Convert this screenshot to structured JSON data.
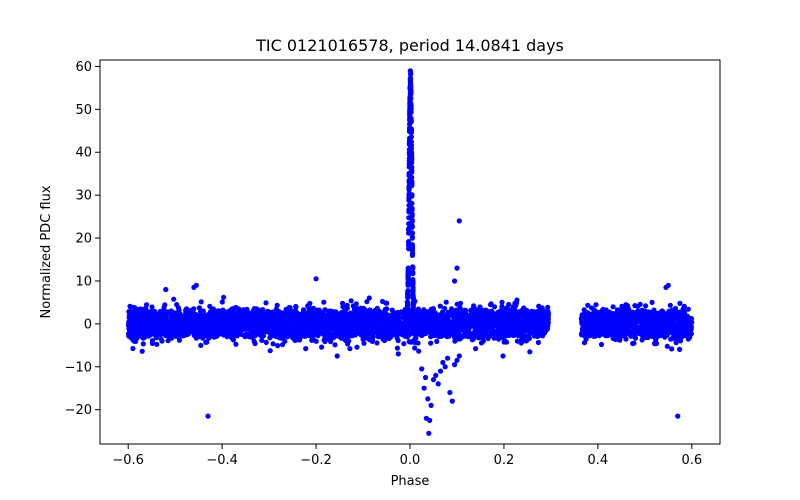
{
  "chart_data": {
    "type": "scatter",
    "title": "TIC 0121016578, period 14.0841 days",
    "xlabel": "Phase",
    "ylabel": "Normalized PDC flux",
    "xlim": [
      -0.66,
      0.66
    ],
    "ylim": [
      -28.0,
      61.5
    ],
    "xticks": [
      -0.6,
      -0.4,
      -0.2,
      0.0,
      0.2,
      0.4,
      0.6
    ],
    "xtick_labels": [
      "−0.6",
      "−0.4",
      "−0.2",
      "0.0",
      "0.2",
      "0.4",
      "0.6"
    ],
    "yticks": [
      -20,
      -10,
      0,
      10,
      20,
      30,
      40,
      50,
      60
    ],
    "ytick_labels": [
      "−20",
      "−10",
      "0",
      "10",
      "20",
      "30",
      "40",
      "50",
      "60"
    ],
    "marker_color": "#0000ff",
    "grid": false,
    "series": [
      {
        "name": "flux",
        "description": "Dense baseline band of points around 0 with scatter roughly -5 to +5, spanning phase -0.6 to 0.3 and 0.37 to 0.6 (gap between ~0.3 and ~0.37), plus a sharp peak near phase 0 reaching ~56.",
        "baseline_segments": [
          {
            "x_start": -0.6,
            "x_end": 0.295,
            "center": 0.0,
            "spread": 5.0
          },
          {
            "x_start": 0.365,
            "x_end": 0.6,
            "center": 0.0,
            "spread": 5.0
          }
        ],
        "peak": {
          "x_center": 0.001,
          "height": 56.0,
          "width": 0.006
        },
        "x": [
          -0.43,
          0.57,
          0.105,
          0.1,
          0.095,
          -0.2,
          0.04,
          0.035,
          0.042,
          0.045,
          0.03,
          0.085,
          0.09,
          0.055,
          0.06,
          0.065,
          0.07,
          0.075,
          0.08,
          0.038,
          0.033,
          0.05,
          0.025,
          0.095,
          0.1,
          0.105,
          -0.46,
          -0.455,
          0.545,
          0.55,
          -0.155,
          -0.025,
          0.198,
          0.255,
          -0.52
        ],
        "y": [
          -21.5,
          -21.5,
          24.0,
          13.0,
          10.0,
          10.5,
          -25.5,
          -22.0,
          -22.5,
          -19.0,
          -15.0,
          -16.0,
          -18.0,
          -12.0,
          -14.0,
          -11.0,
          -9.0,
          -10.0,
          -8.0,
          -17.5,
          -12.5,
          -13.0,
          -10.5,
          -9.5,
          -8.5,
          -7.5,
          8.5,
          9.0,
          8.5,
          9.0,
          -7.5,
          -7.0,
          -7.5,
          -6.5,
          8.0
        ]
      }
    ]
  }
}
